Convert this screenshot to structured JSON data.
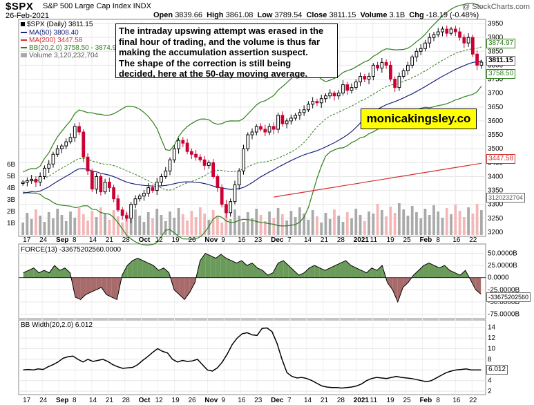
{
  "header": {
    "ticker": "$SPX",
    "subtitle": "S&P 500 Large Cap Index  INDX",
    "date": "26-Feb-2021",
    "open_label": "Open",
    "open": "3839.66",
    "high_label": "High",
    "high": "3861.08",
    "low_label": "Low",
    "low": "3789.54",
    "close_label": "Close",
    "close": "3811.15",
    "volume_label": "Volume",
    "volume": "3.1B",
    "chg_label": "Chg",
    "chg": "-18.19 (-0.48%)",
    "credit": "@ StockCharts.com"
  },
  "annotation": {
    "lines": [
      "The intraday upswing attempt was erased in the",
      "final hour of trading, and the volume is thus far",
      "making the accumulation assertion suspect.",
      "The shape of the correction is still being",
      "decided, here at the 50-day moving average."
    ]
  },
  "brand": "monicakingsley.co",
  "legend": {
    "price": "$SPX (Daily) 3811.15",
    "ma50": "MA(50) 3808.40",
    "ma200": "MA(200) 3447.58",
    "bb": "BB(20,2.0) 3758.50 - 3874.97",
    "volume": "Volume 3,120,232,704"
  },
  "price_tags": {
    "bb_upper": "3874.97",
    "close": "3811.15",
    "bb_lower": "3758.50",
    "ma200": "3447.58",
    "volume": "3120232704"
  },
  "force_panel": {
    "title": "FORCE(13) -33675202560.0000",
    "tag": "-33675202560"
  },
  "bbw_panel": {
    "title": "BB Width(20,2.0) 6.012",
    "tag": "6.012"
  },
  "colors": {
    "up_candle": "#000000",
    "down_candle": "#cc0033",
    "bb": "#2e7d1a",
    "ma50": "#1a237e",
    "ma200": "#d32f2f",
    "vol_up": "#a9a9a9",
    "vol_down": "#f4b6b6",
    "force_pos": "#6b9b5a",
    "force_neg": "#a86b6b"
  },
  "chart_data": [
    {
      "type": "candlestick",
      "title": "$SPX (Daily) 3811.15",
      "x_ticks": [
        "17",
        "24",
        "Sep",
        "8",
        "14",
        "21",
        "28",
        "Oct",
        "12",
        "19",
        "26",
        "Nov",
        "9",
        "16",
        "23",
        "Dec",
        "7",
        "14",
        "21",
        "28",
        "2021",
        "11",
        "19",
        "25",
        "Feb",
        "8",
        "16",
        "22"
      ],
      "y_ticks": [
        3200,
        3250,
        3300,
        3350,
        3400,
        3450,
        3500,
        3550,
        3600,
        3650,
        3700,
        3750,
        3800,
        3850,
        3900,
        3950
      ],
      "ylim": [
        3190,
        3960
      ],
      "volume_ticks": [
        "1B",
        "2B",
        "3B",
        "4B",
        "5B",
        "6B"
      ],
      "close_series": [
        3380,
        3385,
        3390,
        3380,
        3400,
        3430,
        3445,
        3480,
        3500,
        3510,
        3525,
        3540,
        3580,
        3560,
        3470,
        3420,
        3355,
        3400,
        3345,
        3380,
        3360,
        3320,
        3280,
        3260,
        3250,
        3300,
        3320,
        3330,
        3340,
        3360,
        3350,
        3380,
        3400,
        3420,
        3460,
        3500,
        3530,
        3520,
        3490,
        3480,
        3470,
        3460,
        3440,
        3450,
        3400,
        3360,
        3300,
        3270,
        3310,
        3370,
        3420,
        3500,
        3550,
        3560,
        3580,
        3570,
        3560,
        3580,
        3570,
        3620,
        3590,
        3600,
        3610,
        3620,
        3630,
        3640,
        3660,
        3670,
        3665,
        3680,
        3690,
        3700,
        3690,
        3700,
        3730,
        3710,
        3720,
        3740,
        3760,
        3750,
        3760,
        3800,
        3790,
        3810,
        3800,
        3750,
        3720,
        3760,
        3780,
        3800,
        3830,
        3850,
        3860,
        3880,
        3900,
        3910,
        3920,
        3930,
        3915,
        3930,
        3920,
        3900,
        3880,
        3900,
        3840,
        3800,
        3811
      ],
      "ma50_range": [
        3430,
        3808
      ],
      "ma200_end": 3447.58,
      "bb_upper_end": 3874.97,
      "bb_lower_end": 3758.5
    },
    {
      "type": "area",
      "title": "FORCE(13) -33675202560.0000",
      "y_ticks": [
        "50.0000B",
        "25.0000B",
        "0.0000",
        "-25.0000B",
        "-50.0000B",
        "-75.0000B"
      ],
      "ylim": [
        -80,
        65
      ],
      "values_billions": [
        10,
        15,
        20,
        10,
        15,
        10,
        25,
        15,
        20,
        10,
        -40,
        -45,
        -35,
        -30,
        -25,
        -20,
        -35,
        -40,
        -45,
        5,
        25,
        35,
        40,
        35,
        30,
        25,
        15,
        20,
        10,
        -25,
        -35,
        -45,
        -30,
        -10,
        35,
        50,
        45,
        40,
        48,
        40,
        35,
        30,
        35,
        25,
        30,
        20,
        15,
        5,
        10,
        30,
        35,
        25,
        15,
        5,
        10,
        20,
        25,
        20,
        15,
        20,
        25,
        30,
        35,
        25,
        20,
        15,
        10,
        20,
        15,
        25,
        -10,
        -25,
        -50,
        -20,
        -10,
        5,
        15,
        25,
        30,
        25,
        20,
        25,
        15,
        10,
        5,
        15,
        -5,
        -25,
        -34
      ]
    },
    {
      "type": "line",
      "title": "BB Width(20,2.0) 6.012",
      "y_ticks": [
        2,
        4,
        6,
        8,
        10,
        12,
        14
      ],
      "ylim": [
        1.5,
        15
      ],
      "values": [
        6.0,
        6.1,
        6.0,
        6.2,
        6.1,
        6.6,
        7.0,
        7.5,
        8.2,
        8.5,
        8.6,
        8.0,
        7.5,
        8.0,
        7.6,
        7.8,
        8.0,
        7.6,
        7.0,
        6.6,
        6.3,
        6.4,
        6.5,
        7.0,
        7.8,
        8.5,
        9.3,
        10.0,
        9.5,
        9.2,
        8.0,
        7.5,
        7.8,
        7.6,
        7.7,
        8.0,
        7.0,
        6.0,
        5.8,
        6.4,
        7.5,
        9.0,
        10.8,
        12.0,
        12.8,
        13.0,
        12.6,
        12.5,
        13.8,
        13.9,
        13.2,
        11.0,
        8.0,
        5.5,
        4.8,
        4.5,
        4.6,
        4.4,
        4.0,
        3.5,
        3.0,
        2.8,
        2.7,
        2.7,
        2.6,
        2.7,
        2.8,
        3.0,
        3.4,
        4.0,
        4.4,
        4.6,
        4.5,
        4.4,
        4.6,
        4.8,
        4.6,
        4.5,
        4.4,
        4.2,
        4.0,
        3.8,
        4.0,
        4.5,
        5.0,
        5.5,
        5.8,
        6.0,
        6.1,
        6.2,
        6.0,
        6.0,
        6.012
      ]
    }
  ]
}
